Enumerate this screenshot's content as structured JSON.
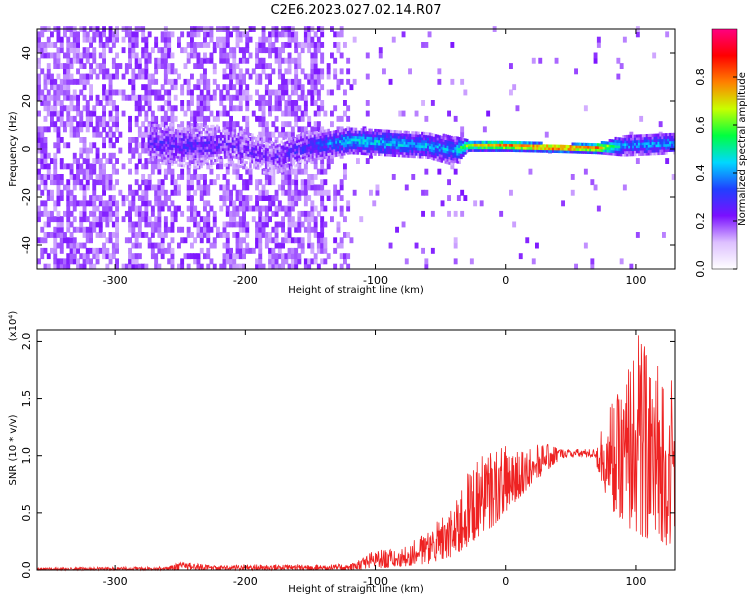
{
  "title": "C2E6.2023.027.02.14.R07",
  "chart_data": [
    {
      "type": "heatmap",
      "xlabel": "Height of straight line (km)",
      "ylabel": "Frequency (Hz)",
      "xlim": [
        -360,
        130
      ],
      "ylim": [
        -50,
        50
      ],
      "xticks": [
        -300,
        -200,
        -100,
        0,
        100
      ],
      "yticks": [
        -40,
        -20,
        0,
        20,
        40
      ],
      "x_tick_labels": [
        "-300",
        "-200",
        "-100",
        "0",
        "100"
      ],
      "y_tick_labels": [
        "-40",
        "-20",
        "0",
        "20",
        "40"
      ],
      "colorbar": {
        "label": "Normalized spectral amplitude",
        "range": [
          0,
          1
        ],
        "ticks": [
          0.0,
          0.2,
          0.4,
          0.6,
          0.8
        ],
        "tick_labels": [
          "0.0",
          "0.2",
          "0.4",
          "0.6",
          "0.8"
        ],
        "colors": [
          "#ffffff",
          "#ddc0ff",
          "#7a10ff",
          "#2040ff",
          "#00d8ff",
          "#00ff40",
          "#c8ff00",
          "#ff8000",
          "#ff0000",
          "#ff0080"
        ]
      },
      "signal_band": [
        {
          "x": -270,
          "center": 2,
          "halfwidth": 8,
          "amp": 0.25
        },
        {
          "x": -240,
          "center": 1,
          "halfwidth": 9,
          "amp": 0.25
        },
        {
          "x": -210,
          "center": 1,
          "halfwidth": 8,
          "amp": 0.22
        },
        {
          "x": -180,
          "center": -4,
          "halfwidth": 7,
          "amp": 0.22
        },
        {
          "x": -150,
          "center": 1,
          "halfwidth": 6,
          "amp": 0.3
        },
        {
          "x": -120,
          "center": 3,
          "halfwidth": 5,
          "amp": 0.45
        },
        {
          "x": -90,
          "center": 2,
          "halfwidth": 5,
          "amp": 0.45
        },
        {
          "x": -60,
          "center": 1,
          "halfwidth": 5,
          "amp": 0.42
        },
        {
          "x": -40,
          "center": -1,
          "halfwidth": 6,
          "amp": 0.4
        },
        {
          "x": -30,
          "center": 1,
          "halfwidth": 2,
          "amp": 0.7
        },
        {
          "x": 0,
          "center": 1,
          "halfwidth": 2,
          "amp": 0.85
        },
        {
          "x": 40,
          "center": 0,
          "halfwidth": 1.5,
          "amp": 0.95
        },
        {
          "x": 70,
          "center": 0,
          "halfwidth": 2,
          "amp": 0.85
        },
        {
          "x": 90,
          "center": 1,
          "halfwidth": 4,
          "amp": 0.4
        },
        {
          "x": 130,
          "center": 2,
          "halfwidth": 4,
          "amp": 0.42
        }
      ]
    },
    {
      "type": "line",
      "xlabel": "Height of straight line (km)",
      "ylabel": "SNR (10 * v/v)",
      "y_scale_label": "(x10⁴)",
      "xlim": [
        -360,
        130
      ],
      "ylim": [
        0,
        2.1
      ],
      "xticks": [
        -300,
        -200,
        -100,
        0,
        100
      ],
      "yticks": [
        0.0,
        0.5,
        1.0,
        1.5,
        2.0
      ],
      "x_tick_labels": [
        "-300",
        "-200",
        "-100",
        "0",
        "100"
      ],
      "y_tick_labels": [
        "0.0",
        "0.5",
        "1.0",
        "1.5",
        "2.0"
      ],
      "series": [
        {
          "color": "#ee2222",
          "envelope_x": [
            -360,
            -260,
            -250,
            -215,
            -200,
            -120,
            -100,
            -80,
            -60,
            -40,
            -30,
            -20,
            -10,
            0,
            20,
            40,
            60,
            70,
            80,
            90,
            100,
            110,
            120,
            130
          ],
          "envelope_lo": [
            0.0,
            0.0,
            0.0,
            0.0,
            0.0,
            0.0,
            0.01,
            0.03,
            0.05,
            0.12,
            0.2,
            0.3,
            0.38,
            0.5,
            0.75,
            0.95,
            1.0,
            0.9,
            0.55,
            0.4,
            0.3,
            0.25,
            0.2,
            0.25
          ],
          "envelope_hi": [
            0.02,
            0.03,
            0.07,
            0.04,
            0.05,
            0.05,
            0.18,
            0.18,
            0.35,
            0.55,
            0.85,
            1.0,
            1.05,
            1.1,
            1.1,
            1.1,
            1.07,
            1.15,
            1.45,
            1.6,
            2.1,
            2.0,
            1.75,
            1.7
          ]
        }
      ]
    }
  ]
}
